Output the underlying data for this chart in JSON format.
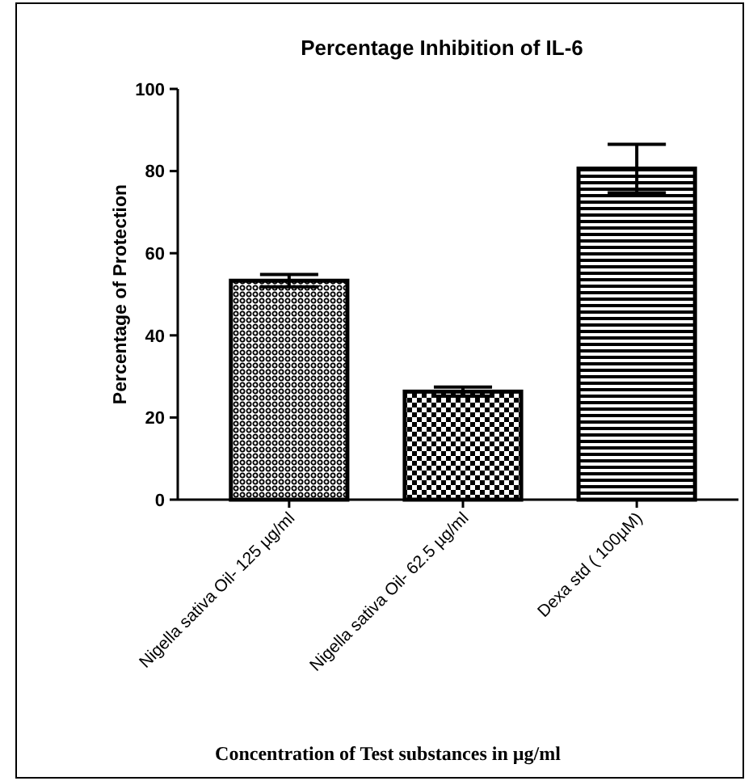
{
  "chart_data": {
    "type": "bar",
    "title": "Percentage Inhibition of IL-6",
    "xlabel": "Concentration of Test substances in µg/ml",
    "ylabel": "Percentage of Protection",
    "categories": [
      "Nigella sativa Oil- 125  µg/ml",
      "Nigella sativa Oil- 62.5 µg/ml",
      "Dexa std ( 100µM)"
    ],
    "values": [
      53.3,
      26.3,
      80.6
    ],
    "errors": [
      1.5,
      1.1,
      5.9
    ],
    "colors": [
      "#000000",
      "#000000",
      "#000000"
    ],
    "ylim": [
      0,
      100
    ],
    "yticks": [
      0,
      20,
      40,
      60,
      80,
      100
    ],
    "grid": false
  }
}
